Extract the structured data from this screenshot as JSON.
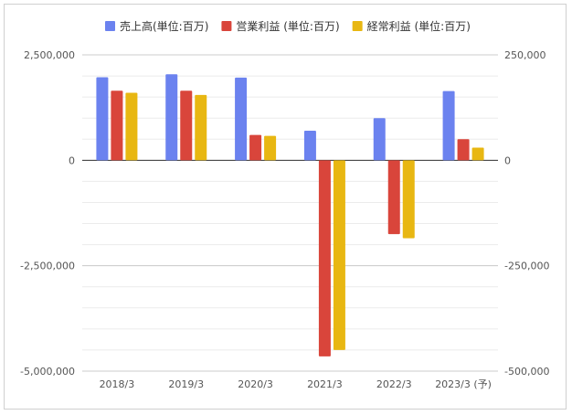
{
  "chart_data": {
    "type": "bar",
    "categories": [
      "2018/3",
      "2019/3",
      "2020/3",
      "2021/3",
      "2022/3",
      "2023/3 (予)"
    ],
    "series": [
      {
        "name": "売上高(単位:百万)",
        "axis": "left",
        "color": "#6b82ef",
        "values": [
          1970000,
          2040000,
          1960000,
          700000,
          1000000,
          1640000
        ]
      },
      {
        "name": "営業利益 (単位:百万)",
        "axis": "right",
        "color": "#d9453b",
        "values": [
          165000,
          165000,
          60000,
          -465000,
          -175000,
          50000
        ]
      },
      {
        "name": "経常利益 (単位:百万)",
        "axis": "right",
        "color": "#e8b712",
        "values": [
          160000,
          155000,
          58000,
          -450000,
          -185000,
          30000
        ]
      }
    ],
    "y_left": {
      "ylim": [
        -5000000,
        2500000
      ],
      "ticks": [
        "2,500,000",
        "0",
        "-2,500,000",
        "-5,000,000"
      ]
    },
    "y_right": {
      "ylim": [
        -500000,
        250000
      ],
      "ticks": [
        "250,000",
        "0",
        "-250,000",
        "-500,000"
      ]
    },
    "legend_position": "top-center",
    "grid": true
  }
}
